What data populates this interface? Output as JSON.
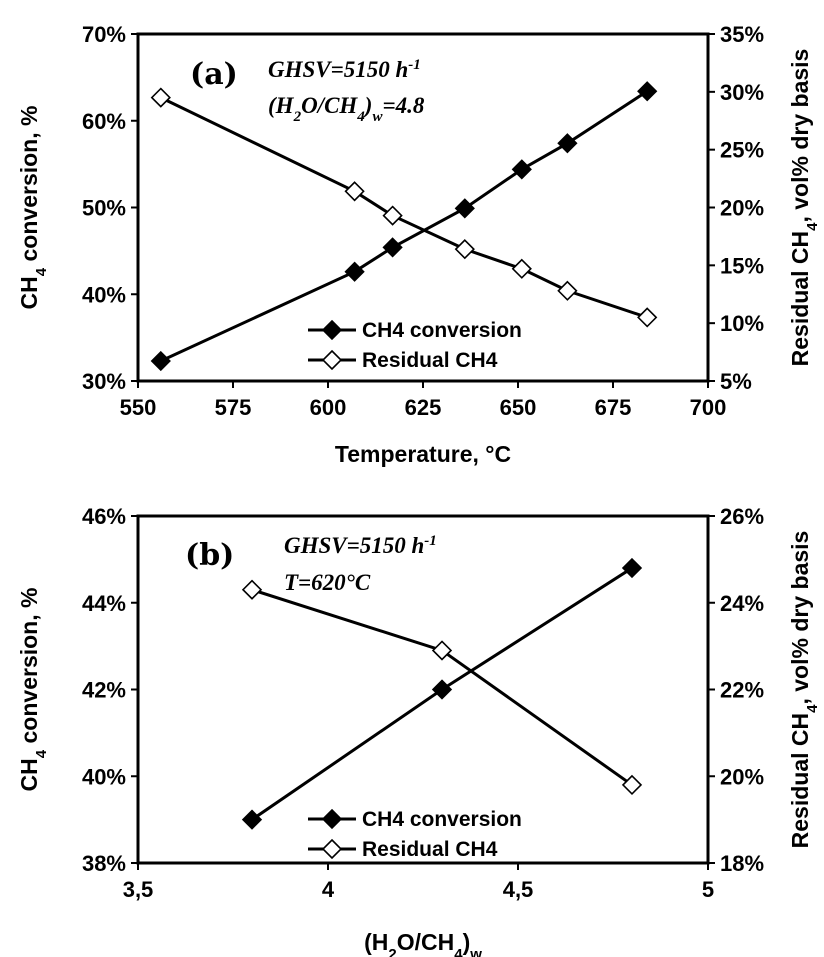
{
  "colors": {
    "line": "#000000",
    "filled_marker": "#000000",
    "open_marker_fill": "#ffffff",
    "background": "#ffffff"
  },
  "chart_data": [
    {
      "type": "line",
      "panel_label": "(a)",
      "annotations": [
        "GHSV=5150 h-1",
        "(H2O/CH4)w=4.8"
      ],
      "xlabel": "Temperature, °C",
      "ylabel": "CH4 conversion, %",
      "y2label": "Residual CH4, vol% dry basis",
      "xlim": [
        550,
        700
      ],
      "ylim": [
        30,
        70
      ],
      "y2lim": [
        5,
        35
      ],
      "x_ticks": [
        "550",
        "575",
        "600",
        "625",
        "650",
        "675",
        "700"
      ],
      "y_ticks": [
        "30%",
        "40%",
        "50%",
        "60%",
        "70%"
      ],
      "y2_ticks": [
        "5%",
        "10%",
        "15%",
        "20%",
        "25%",
        "30%",
        "35%"
      ],
      "legend_position": "bottom-right",
      "series": [
        {
          "name": "CH4 conversion",
          "axis": "left",
          "marker": "filled-diamond",
          "x": [
            556,
            607,
            617,
            636,
            651,
            663,
            684
          ],
          "values": [
            32.3,
            42.6,
            45.4,
            49.9,
            54.4,
            57.4,
            63.4
          ]
        },
        {
          "name": "Residual CH4",
          "axis": "right",
          "marker": "open-diamond",
          "x": [
            556,
            607,
            617,
            636,
            651,
            663,
            684
          ],
          "values": [
            29.5,
            21.4,
            19.3,
            16.4,
            14.7,
            12.8,
            10.5
          ]
        }
      ]
    },
    {
      "type": "line",
      "panel_label": "(b)",
      "annotations": [
        "GHSV=5150 h-1",
        "T=620°C"
      ],
      "xlabel": "(H2O/CH4)w",
      "ylabel": "CH4 conversion, %",
      "y2label": "Residual CH4, vol% dry basis",
      "xlim": [
        3.5,
        5
      ],
      "ylim": [
        38,
        46
      ],
      "y2lim": [
        18,
        26
      ],
      "x_ticks": [
        "3,5",
        "4",
        "4,5",
        "5"
      ],
      "y_ticks": [
        "38%",
        "40%",
        "42%",
        "44%",
        "46%"
      ],
      "y2_ticks": [
        "18%",
        "20%",
        "22%",
        "24%",
        "26%"
      ],
      "legend_position": "bottom-right",
      "series": [
        {
          "name": "CH4 conversion",
          "axis": "left",
          "marker": "filled-diamond",
          "x": [
            3.8,
            4.3,
            4.8
          ],
          "values": [
            39.0,
            42.0,
            44.8
          ]
        },
        {
          "name": "Residual CH4",
          "axis": "right",
          "marker": "open-diamond",
          "x": [
            3.8,
            4.3,
            4.8
          ],
          "values": [
            24.3,
            22.9,
            19.8
          ]
        }
      ]
    }
  ]
}
